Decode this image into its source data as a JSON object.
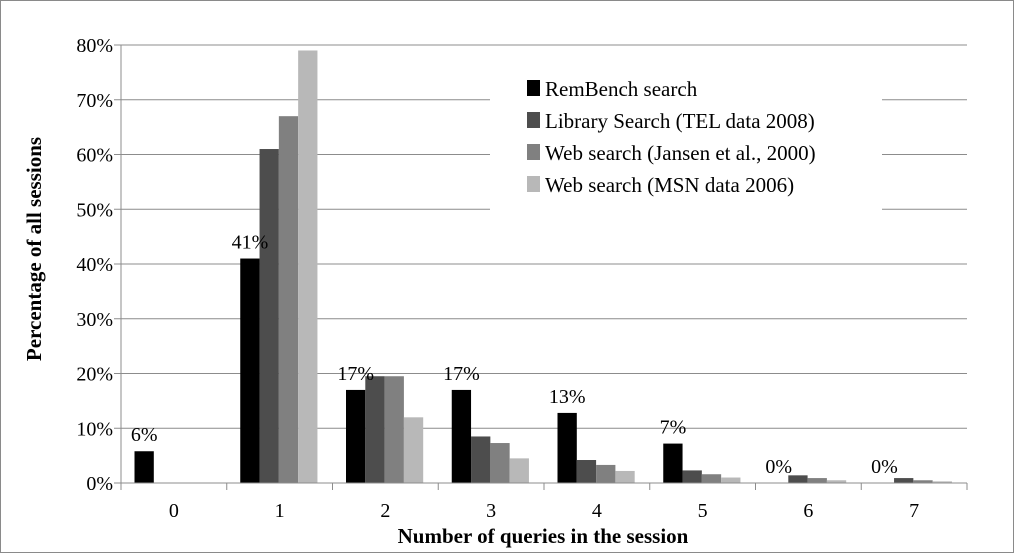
{
  "chart_data": {
    "type": "bar",
    "xlabel": "Number of queries in the session",
    "ylabel": "Percentage of all sessions",
    "categories": [
      "0",
      "1",
      "2",
      "3",
      "4",
      "5",
      "6",
      "7"
    ],
    "ylim": [
      0,
      80
    ],
    "yticks": [
      "0%",
      "10%",
      "20%",
      "30%",
      "40%",
      "50%",
      "60%",
      "70%",
      "80%"
    ],
    "grid": true,
    "legend_position": "top-right",
    "series": [
      {
        "name": "RemBench search",
        "color": "#000000",
        "values": [
          5.8,
          41,
          17,
          17,
          12.8,
          7.2,
          0,
          0
        ]
      },
      {
        "name": "Library Search (TEL data 2008)",
        "color": "#4d4d4d",
        "values": [
          0,
          61,
          19.5,
          8.5,
          4.2,
          2.3,
          1.4,
          0.9
        ]
      },
      {
        "name": "Web search (Jansen et al., 2000)",
        "color": "#808080",
        "values": [
          0,
          67,
          19.5,
          7.3,
          3.3,
          1.6,
          0.9,
          0.5
        ]
      },
      {
        "name": "Web search (MSN data 2006)",
        "color": "#b8b8b8",
        "values": [
          0,
          79,
          12,
          4.5,
          2.2,
          1.0,
          0.5,
          0.3
        ]
      }
    ],
    "data_labels": [
      "6%",
      "41%",
      "17%",
      "17%",
      "13%",
      "7%",
      "0%",
      "0%"
    ]
  }
}
